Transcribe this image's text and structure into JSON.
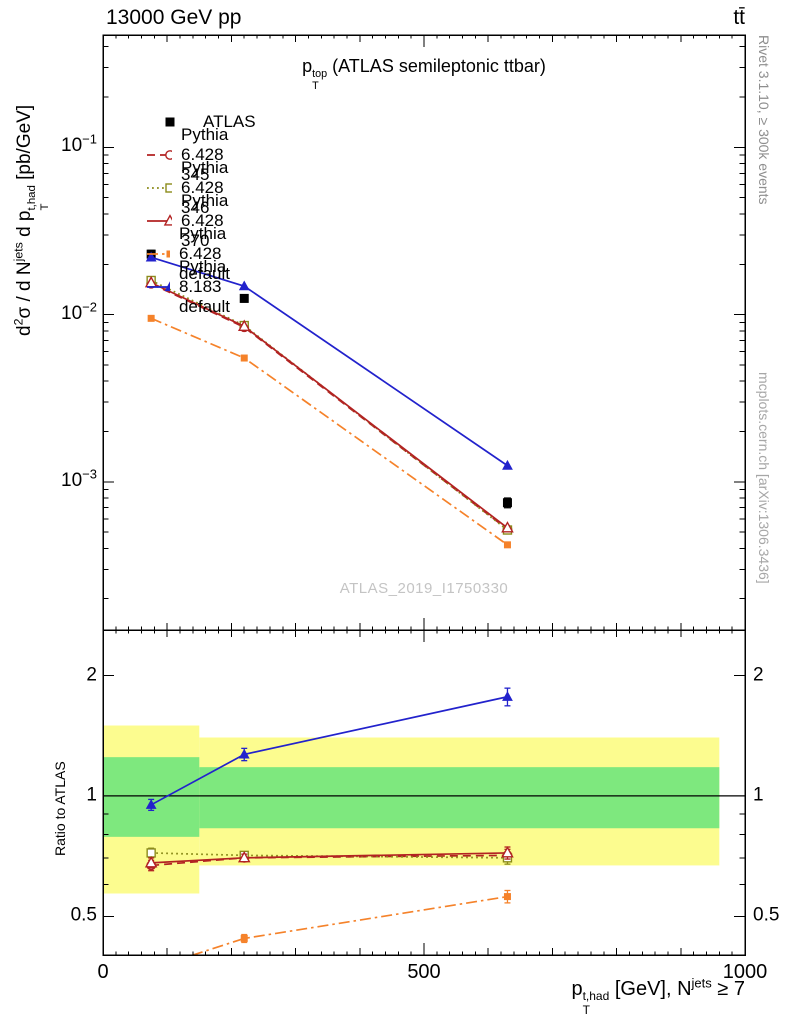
{
  "header": {
    "left": "13000 GeV pp",
    "right": "tt̄"
  },
  "side_notes": {
    "top": "Rivet 3.1.10, ≥ 300k events",
    "bottom": "mcplots.cern.ch [arXiv:1306.3436]"
  },
  "watermark": "ATLAS_2019_I1750330",
  "annotation": "p_{T}^{top} (ATLAS semileptonic ttbar)",
  "axes": {
    "main_y_label": "d^{2}σ / d N^{jets} d p_{T}^{t,had} [pb/GeV]",
    "ratio_y_label": "Ratio to ATLAS",
    "x_label": "p_{T}^{t,had} [GeV], N^{jets} ≥ 7"
  },
  "colors": {
    "yellow_band": "#fcfc8f",
    "green_band": "#7ee87e",
    "frame": "#000000",
    "watermark": "#c4c4c4"
  },
  "chart_data": {
    "type": "line",
    "title": "p_T^top (ATLAS semileptonic ttbar)",
    "x": [
      75,
      220,
      630
    ],
    "x_range": [
      0,
      1000
    ],
    "x_ticks": [
      0,
      500,
      1000
    ],
    "main_panel": {
      "scale": "log",
      "y_range": [
        0.00013,
        0.47
      ],
      "y_ticks": [
        0.1,
        0.01,
        0.001
      ],
      "ylabel": "d2sigma / dNjets dpT(t,had) [pb/GeV]"
    },
    "ratio_panel": {
      "scale": "log",
      "y_range": [
        0.4,
        2.6
      ],
      "y_ticks": [
        2,
        1,
        0.5
      ],
      "reference": 1,
      "ylabel": "Ratio to ATLAS"
    },
    "series": [
      {
        "name": "atlas",
        "label": "ATLAS",
        "color": "#000000",
        "line": "none",
        "marker": "square-filled",
        "values": [
          0.023,
          0.0125,
          0.00075
        ],
        "main_errors": [
          0.0012,
          0.0006,
          5e-05
        ],
        "ratio": null
      },
      {
        "name": "pythia6-345",
        "label": "Pythia 6.428 345",
        "color": "#b22222",
        "line": "dashed",
        "marker": "circle-open",
        "values": [
          0.0153,
          0.0084,
          0.00052
        ],
        "ratio": [
          0.67,
          0.7,
          0.71
        ],
        "ratio_errors": [
          0.02,
          0.015,
          0.025
        ]
      },
      {
        "name": "pythia6-346",
        "label": "Pythia 6.428 346",
        "color": "#8b8b1a",
        "line": "dotted",
        "marker": "square-open",
        "values": [
          0.016,
          0.0086,
          0.000515
        ],
        "ratio": [
          0.72,
          0.71,
          0.7
        ],
        "ratio_errors": [
          0.02,
          0.015,
          0.025
        ]
      },
      {
        "name": "pythia6-370",
        "label": "Pythia 6.428 370",
        "color": "#b22222",
        "line": "solid",
        "marker": "triangle-open",
        "values": [
          0.0155,
          0.0085,
          0.00053
        ],
        "ratio": [
          0.68,
          0.7,
          0.72
        ],
        "ratio_errors": [
          0.02,
          0.015,
          0.025
        ]
      },
      {
        "name": "pythia6-default",
        "label": "Pythia 6.428 default",
        "color": "#f5822a",
        "line": "dashdot",
        "marker": "square-filled-small",
        "values": [
          0.0095,
          0.0055,
          0.00042
        ],
        "ratio": [
          0.37,
          0.44,
          0.56
        ],
        "ratio_errors": [
          0.012,
          0.01,
          0.02
        ]
      },
      {
        "name": "pythia8-default",
        "label": "Pythia 8.183 default",
        "color": "#2222cc",
        "line": "solid",
        "marker": "triangle-filled",
        "values": [
          0.022,
          0.0148,
          0.00125
        ],
        "ratio": [
          0.95,
          1.27,
          1.77
        ],
        "ratio_errors": [
          0.03,
          0.045,
          0.09
        ]
      }
    ],
    "uncertainty_bands": [
      {
        "x0": 0,
        "x1": 150,
        "yellow": [
          0.57,
          1.5
        ],
        "green": [
          0.79,
          1.25
        ]
      },
      {
        "x0": 150,
        "x1": 960,
        "yellow": [
          0.67,
          1.4
        ],
        "green": [
          0.83,
          1.18
        ]
      }
    ]
  }
}
